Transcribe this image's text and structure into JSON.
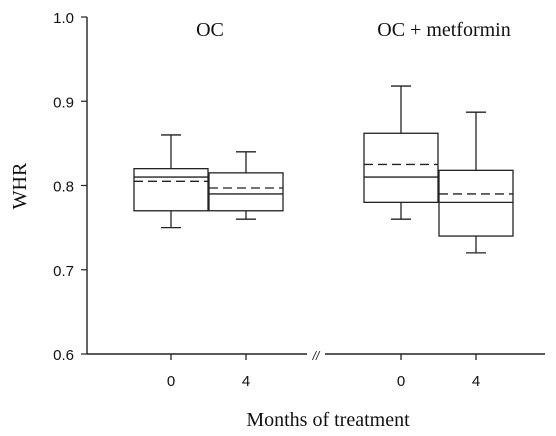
{
  "chart_data": {
    "type": "box",
    "ylabel": "WHR",
    "xlabel": "Months of treatment",
    "ylim": [
      0.6,
      1.0
    ],
    "yticks": [
      "0.6",
      "0.7",
      "0.8",
      "0.9",
      "1.0"
    ],
    "grid": false,
    "axis_break_marker": "//",
    "groups": [
      {
        "title": "OC",
        "boxes": [
          {
            "x_label": "0",
            "whisker_low": 0.75,
            "q1": 0.77,
            "median": 0.81,
            "mean": 0.805,
            "q3": 0.82,
            "whisker_high": 0.86
          },
          {
            "x_label": "4",
            "whisker_low": 0.76,
            "q1": 0.77,
            "median": 0.79,
            "mean": 0.797,
            "q3": 0.815,
            "whisker_high": 0.84
          }
        ]
      },
      {
        "title": "OC + metformin",
        "boxes": [
          {
            "x_label": "0",
            "whisker_low": 0.76,
            "q1": 0.78,
            "median": 0.81,
            "mean": 0.825,
            "q3": 0.862,
            "whisker_high": 0.918
          },
          {
            "x_label": "4",
            "whisker_low": 0.72,
            "q1": 0.74,
            "median": 0.78,
            "mean": 0.79,
            "q3": 0.818,
            "whisker_high": 0.887
          }
        ]
      }
    ]
  }
}
